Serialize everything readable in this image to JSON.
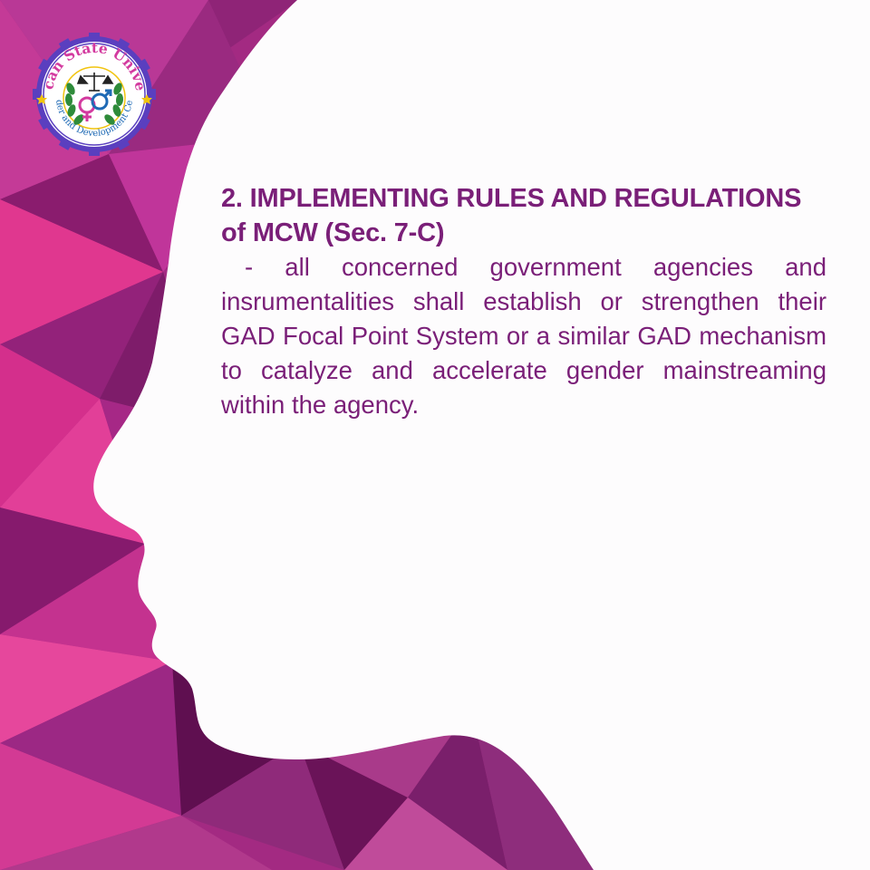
{
  "logo": {
    "name_top": "Bulacan State University",
    "name_bottom": "Gender and Development Center"
  },
  "content": {
    "heading_line1": "2. IMPLEMENTING RULES AND REGULATIONS",
    "heading_line2": "of MCW (Sec. 7-C)",
    "body": "- all concerned government agencies and insrumentalities shall establish or strengthen their GAD Focal Point System or a similar GAD mechanism to catalyze and accelerate gender mainstreaming within the agency."
  },
  "colors": {
    "text": "#7a1f78",
    "magenta": "#d62f8e",
    "purple": "#8a1f77",
    "dark_plum": "#5c0f4f",
    "background": "#fdfcfd"
  }
}
